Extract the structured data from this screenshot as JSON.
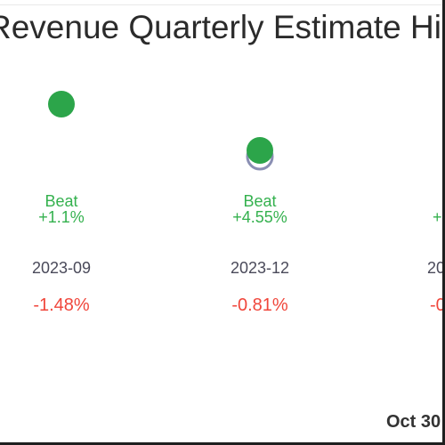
{
  "chart_data": {
    "type": "scatter",
    "title": "Revenue Quarterly Estimate Hist",
    "periods": [
      {
        "period": "2023-09",
        "status": "Beat",
        "surprise": "+1.1%",
        "revision": "-1.48%"
      },
      {
        "period": "2023-12",
        "status": "Beat",
        "surprise": "+4.55%",
        "revision": "-0.81%"
      },
      {
        "period": "20",
        "status": "",
        "surprise": "+",
        "revision": "-0"
      }
    ],
    "colors": {
      "beat": "#2ca54a",
      "estimate": "#8a8fb3",
      "positive_text": "#34b14e",
      "negative_text": "#f0463b",
      "date_text": "#4a4a5a"
    },
    "footer": "Oct 30"
  }
}
